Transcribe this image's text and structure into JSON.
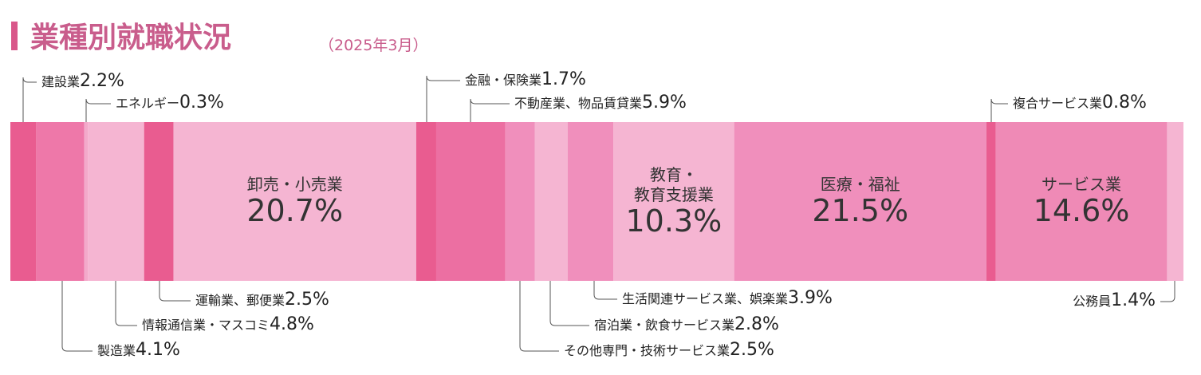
{
  "chart_data": {
    "type": "stacked-bar",
    "title": "業種別就職状況",
    "subtitle": "（2025年3月）",
    "categories": [
      "建設業",
      "製造業",
      "エネルギー",
      "情報通信業・マスコミ",
      "運輸業、郵便業",
      "卸売・小売業",
      "金融・保険業",
      "不動産業、物品賃貸業",
      "その他専門・技術サービス業",
      "宿泊業・飲食サービス業",
      "生活関連サービス業、娯楽業",
      "教育・\n教育支援業",
      "医療・福祉",
      "複合サービス業",
      "サービス業",
      "公務員"
    ],
    "values": [
      2.2,
      4.1,
      0.3,
      4.8,
      2.5,
      20.7,
      1.7,
      5.9,
      2.5,
      2.8,
      3.9,
      10.3,
      21.5,
      0.8,
      14.6,
      1.4
    ],
    "value_labels": [
      "2.2%",
      "4.1%",
      "0.3%",
      "4.8%",
      "2.5%",
      "20.7%",
      "1.7%",
      "5.9%",
      "2.5%",
      "2.8%",
      "3.9%",
      "10.3%",
      "21.5%",
      "0.8%",
      "14.6%",
      "1.4%"
    ],
    "colors": [
      "#e95c90",
      "#ee78a9",
      "#f3a9ca",
      "#f5b5d2",
      "#e95c90",
      "#f5b5d2",
      "#e95c90",
      "#ec6fa2",
      "#f08fbc",
      "#f5b5d2",
      "#f08fbc",
      "#f5b5d2",
      "#f08fbc",
      "#e95c90",
      "#ef8ab6",
      "#f5b5d2"
    ],
    "xlim": [
      0,
      100
    ]
  }
}
